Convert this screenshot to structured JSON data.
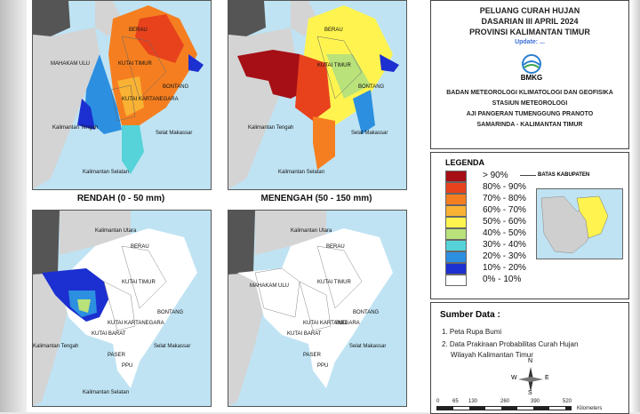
{
  "header": {
    "line1": "PELUANG CURAH HUJAN",
    "line2": "DASARIAN III APRIL 2024",
    "line3": "PROVINSI KALIMANTAN TIMUR",
    "updated": "Update: ...",
    "logo_text": "BMKG",
    "agency1": "BADAN METEOROLOGI KLIMATOLOGI DAN GEOFISIKA",
    "agency2": "STASIUN METEOROLOGI",
    "agency3": "AJI PANGERAN TUMENGGUNG PRANOTO",
    "agency4": "SAMARINDA - KALIMANTAN TIMUR"
  },
  "maps": [
    {
      "title": "RENDAH (0 - 50 mm)"
    },
    {
      "title": "MENENGAH (50 - 150 mm)"
    },
    {
      "title": ""
    },
    {
      "title": ""
    }
  ],
  "map_labels": {
    "berau": "BERAU",
    "kutai_timur": "KUTAI TIMUR",
    "kutai_kartanegara": "KUTAI KARTANEGARA",
    "kutai_barat": "KUTAI BARAT",
    "mahakam_ulu": "MAHAKAM ULU",
    "bontang": "BONTANG",
    "smd": "SMD",
    "paser": "PASER",
    "ppu": "PPU",
    "kalteng": "Kalimantan Tengah",
    "kalsel": "Kalimantan Selatan",
    "kaltara": "Kalimantan Utara",
    "selat": "Selat Makassar"
  },
  "legend": {
    "title": "LEGENDA",
    "boundary_label": "BATAS KABUPATEN",
    "classes": [
      {
        "label": "> 90%",
        "color": "#a50f15"
      },
      {
        "label": "80% - 90%",
        "color": "#e8421d"
      },
      {
        "label": "70% - 80%",
        "color": "#f57f20"
      },
      {
        "label": "60% - 70%",
        "color": "#f9b233"
      },
      {
        "label": "50% - 60%",
        "color": "#fff44f"
      },
      {
        "label": "40% - 50%",
        "color": "#b9e27a"
      },
      {
        "label": "30% - 40%",
        "color": "#56d3d9"
      },
      {
        "label": "20% - 30%",
        "color": "#2c8fe0"
      },
      {
        "label": "10% - 20%",
        "color": "#1c2fd0"
      },
      {
        "label": "0% - 10%",
        "color": "#ffffff"
      }
    ]
  },
  "source": {
    "title": "Sumber Data :",
    "item1": "1. Peta Rupa Bumi",
    "item2a": "2. Data Prakiraan Probabilitas Curah Hujan",
    "item2b": "Wilayah Kalimantan Timur",
    "north": "N",
    "south": "S",
    "east": "E",
    "west": "W",
    "scale": [
      "0",
      "65",
      "130",
      "260",
      "390",
      "520"
    ],
    "scale_unit": "Kilometers"
  },
  "colors": {
    "sea": "#bfe3f3",
    "land_outside": "#d4d4d4",
    "dark_land": "#555555"
  }
}
